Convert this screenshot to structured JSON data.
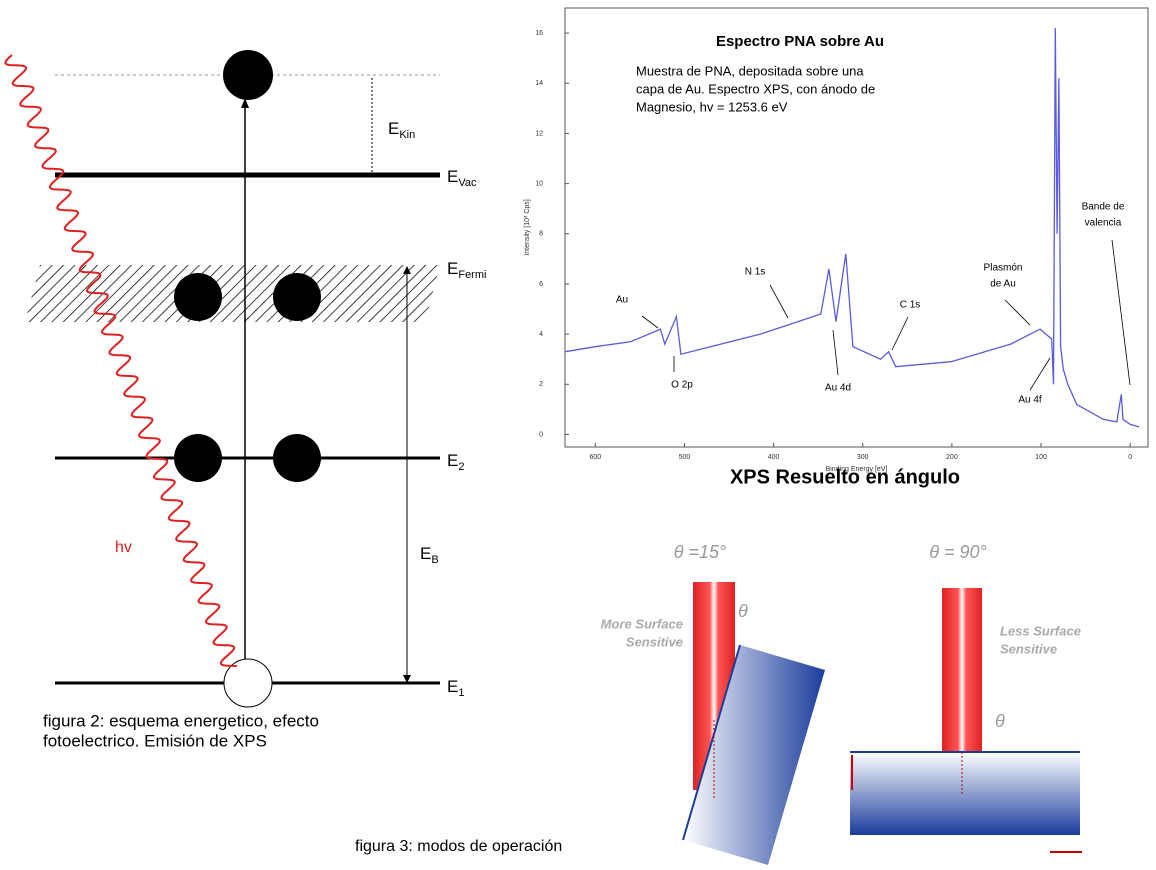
{
  "chart_data": {
    "type": "line",
    "title": "Espectro PNA sobre Au",
    "description": [
      "Muestra de PNA, depositada sobre una",
      "capa de Au. Espectro XPS, con ánodo de",
      "Magnesio, hv = 1253.6 eV"
    ],
    "x_label": "Binding Energy [eV]",
    "y_label": "Intensity [10³ Cps]",
    "x": [
      634,
      600,
      560,
      527,
      522,
      509,
      504,
      482,
      415,
      381,
      347,
      338,
      330,
      319,
      311,
      280,
      271,
      263,
      201,
      134,
      101,
      88,
      86,
      84,
      82,
      80,
      78,
      75,
      70,
      60,
      50,
      40,
      30,
      15,
      10,
      8,
      0,
      -10
    ],
    "values": [
      3.3,
      3.5,
      3.7,
      4.2,
      3.6,
      4.7,
      3.2,
      3.4,
      4.0,
      4.4,
      4.8,
      6.6,
      4.5,
      7.2,
      3.5,
      3.0,
      3.3,
      2.7,
      2.9,
      3.6,
      4.2,
      3.8,
      2.0,
      16.2,
      8.0,
      14.2,
      3.5,
      2.6,
      2.0,
      1.2,
      1.0,
      0.8,
      0.6,
      0.5,
      1.6,
      0.6,
      0.4,
      0.3
    ],
    "color": "#5a5ae0",
    "xlim": [
      634,
      -20
    ],
    "xticks": [
      600,
      500,
      400,
      300,
      200,
      100,
      0
    ],
    "ylim": [
      -0.5,
      17
    ],
    "yticks": [
      0,
      2,
      4,
      6,
      8,
      10,
      12,
      14,
      16
    ],
    "annotations": [
      "Au",
      "O 2p",
      "N 1s",
      "Au 4d",
      "C 1s",
      "Plasmón",
      "de Au",
      "Au 4f",
      "Bande de",
      "valencia"
    ]
  },
  "energy_diagram": {
    "levels": [
      {
        "main": "E",
        "sub": "Kin"
      },
      {
        "main": "E",
        "sub": "Vac"
      },
      {
        "main": "E",
        "sub": "Fermi"
      },
      {
        "main": "E",
        "sub": "2"
      },
      {
        "main": "E",
        "sub": "B"
      },
      {
        "main": "E",
        "sub": "1"
      }
    ],
    "photon": "hv",
    "caption": [
      "figura 2: esquema energetico, efecto",
      "fotoelectrico. Emisión de XPS"
    ]
  },
  "angle_figure": {
    "title": "XPS Resuelto en ángulo",
    "left_angle": "θ =15°",
    "right_angle": "θ = 90°",
    "left_note": [
      "More Surface",
      "Sensitive"
    ],
    "right_note": [
      "Less Surface",
      "Sensitive"
    ],
    "theta": "θ",
    "caption": "figura 3: modos de operación"
  }
}
